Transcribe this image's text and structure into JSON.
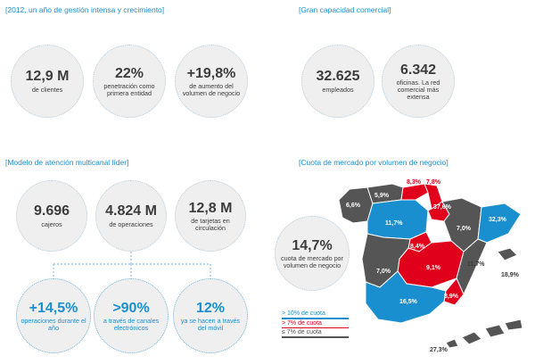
{
  "sections": {
    "s1": "[2012, un año de gestión intensa y crecimiento]",
    "s2": "[Gran capacidad comercial]",
    "s3": "[Modelo de atención multicanal líder]",
    "s4": "[Cuota de mercado por volumen de negocio]"
  },
  "gestion": [
    {
      "value": "12,9 M",
      "label": "de clientes"
    },
    {
      "value": "22%",
      "label": "penetración como primera entidad"
    },
    {
      "value": "+19,8%",
      "label": "de aumento del volumen de negocio"
    }
  ],
  "capacidad": [
    {
      "value": "32.625",
      "label": "empleados"
    },
    {
      "value": "6.342",
      "label": "oficinas. La red comercial más extensa"
    }
  ],
  "multicanal": [
    {
      "value": "9.696",
      "label": "cajeros"
    },
    {
      "value": "4.824 M",
      "label": "de operaciones"
    },
    {
      "value": "12,8 M",
      "label": "de tarjetas en circulación"
    }
  ],
  "operaciones": [
    {
      "value": "+14,5%",
      "label": "operaciones durante el año"
    },
    {
      "value": ">90%",
      "label": "a través de canales electrónicos"
    },
    {
      "value": "12%",
      "label": "ya se hacen a través del móvil"
    }
  ],
  "cuota": {
    "value": "14,7%",
    "label": "cuota de mercado por volumen de negocio"
  },
  "legend": [
    {
      "label": "> 10% de cuota",
      "color": "#1a8fd0"
    },
    {
      "label": "> 7% de cuota",
      "color": "#e0001b"
    },
    {
      "label": "≤ 7% de cuota",
      "color": "#555555"
    }
  ],
  "map_values": [
    "6,6%",
    "5,9%",
    "8,3%",
    "7,8%",
    "37,6%",
    "11,7%",
    "32,3%",
    "7,0%",
    "8,4%",
    "9,1%",
    "11,7%",
    "18,9%",
    "7,0%",
    "16,5%",
    "8,9%",
    "27,3%"
  ],
  "colors": {
    "blue": "#1a8fd0",
    "red": "#e0001b",
    "grey": "#555555"
  }
}
